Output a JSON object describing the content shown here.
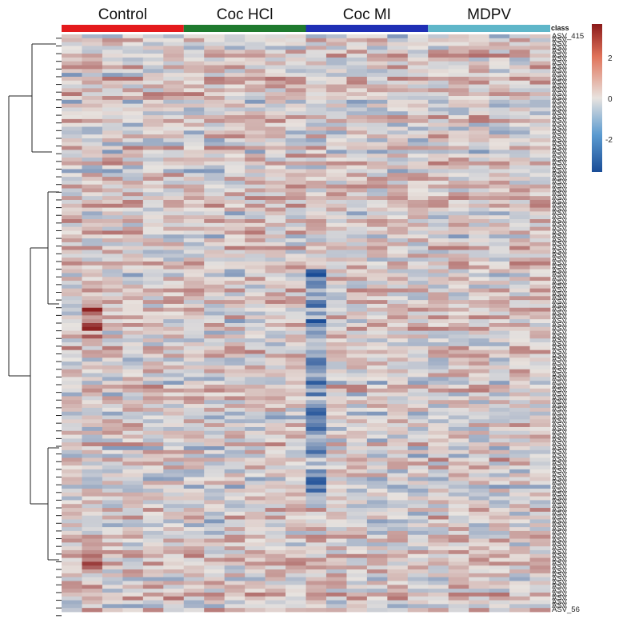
{
  "chart_data": {
    "type": "heatmap",
    "title": "",
    "annotation_title": "class",
    "groups": [
      {
        "name": "Control",
        "color": "#e41a1c",
        "n_samples": 6
      },
      {
        "name": "Coc HCl",
        "color": "#1f7a2e",
        "n_samples": 6
      },
      {
        "name": "Coc MI",
        "color": "#1f2fb5",
        "n_samples": 6
      },
      {
        "name": "MDPV",
        "color": "#5fb6c9",
        "n_samples": 6
      }
    ],
    "color_scale": {
      "low": "#1a4d97",
      "mid": "#e8e3df",
      "high": "#8b1a1a",
      "ticks": [
        "2",
        "0",
        "-2"
      ]
    },
    "first_row_label": "ASV_415",
    "last_row_label": "ASV_56",
    "n_rows": 150,
    "row_dendrogram": true
  }
}
